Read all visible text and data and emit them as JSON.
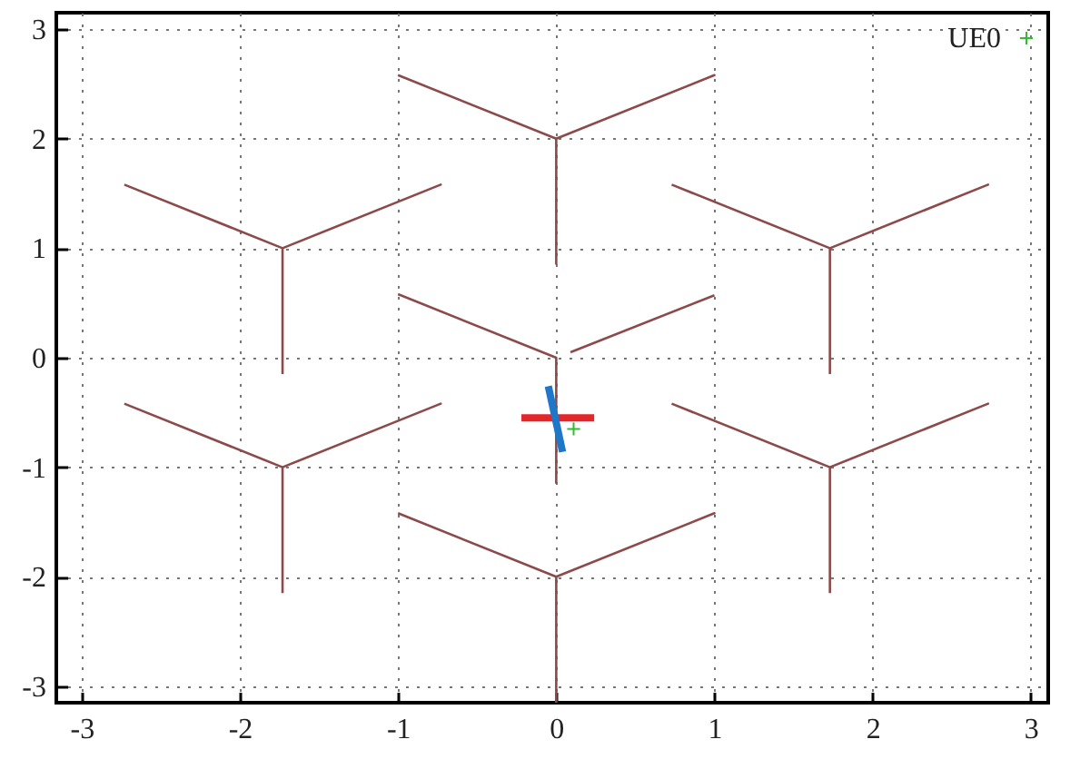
{
  "chart_data": {
    "type": "line",
    "xlim": [
      -3.16,
      3.11
    ],
    "ylim": [
      -3.15,
      3.15
    ],
    "xticks": [
      -3,
      -2,
      -1,
      0,
      1,
      2,
      3
    ],
    "yticks": [
      -3,
      -2,
      -1,
      0,
      1,
      2,
      3
    ],
    "grid": true,
    "legend": "top right",
    "series": [
      {
        "color": "#8c4a4a",
        "x": [
          -1,
          0,
          1,
          0,
          0
        ],
        "values": [
          2.58,
          2,
          2.58,
          2,
          0.85
        ]
      },
      {
        "color": "#8c4a4a",
        "x": [
          -2.73,
          -1.73,
          -0.73,
          -1.73,
          -1.73
        ],
        "values": [
          1.58,
          1,
          1.58,
          1,
          -0.15
        ]
      },
      {
        "color": "#8c4a4a",
        "x": [
          0.73,
          1.73,
          2.73,
          1.73,
          1.73
        ],
        "values": [
          1.58,
          1,
          1.58,
          1,
          -0.15
        ]
      },
      {
        "color": "#8c4a4a",
        "x": [
          1,
          0.09,
          null,
          -1,
          0,
          0
        ],
        "values": [
          0.57,
          0.05,
          null,
          0.58,
          0,
          -1.15
        ]
      },
      {
        "color": "#8c4a4a",
        "x": [
          -2.73,
          -1.73,
          -0.73,
          -1.73,
          -1.73
        ],
        "values": [
          -0.42,
          -1,
          -0.42,
          -1,
          -2.15
        ]
      },
      {
        "color": "#8c4a4a",
        "x": [
          0.73,
          1.73,
          2.73,
          1.73,
          1.73
        ],
        "values": [
          -0.42,
          -1,
          -0.42,
          -1,
          -2.15
        ]
      },
      {
        "color": "#8c4a4a",
        "x": [
          -1,
          0,
          1,
          0,
          0
        ],
        "values": [
          -1.42,
          -2,
          -1.42,
          -2,
          -3.15
        ]
      },
      {
        "color": "#e3262a",
        "x": [
          -0.22,
          0.24
        ],
        "values": [
          -0.55,
          -0.55
        ]
      },
      {
        "color": "#1f77c8",
        "x": [
          -0.05,
          0.04
        ],
        "values": [
          -0.26,
          -0.86
        ]
      },
      {
        "type": "scatter",
        "name": "UE0",
        "color": "#33bb33",
        "marker": "cross",
        "x": [
          0.11
        ],
        "values": [
          -0.65
        ]
      }
    ]
  }
}
